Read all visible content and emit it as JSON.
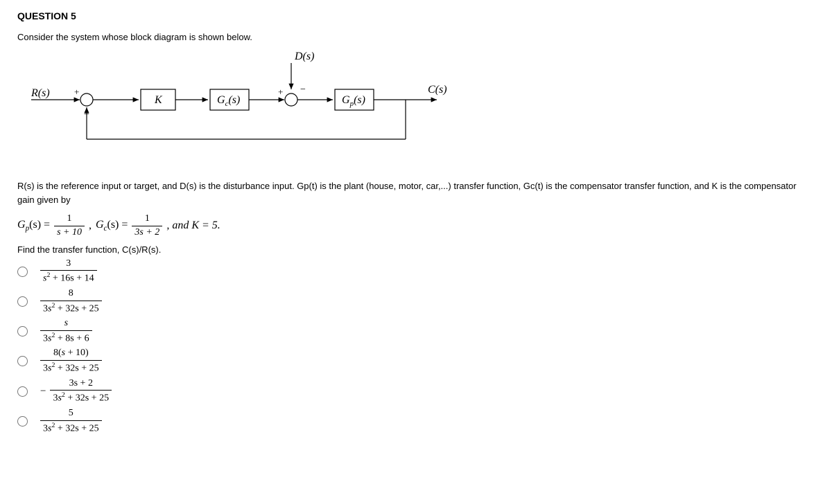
{
  "question": {
    "title": "QUESTION 5",
    "prompt": "Consider the system whose block diagram is shown below.",
    "description": "R(s) is the reference input or target, and D(s) is the disturbance input.  Gp(t) is the plant (house, motor, car,...) transfer function, Gc(t) is the compensator transfer function, and K is the compensator gain given by",
    "find": "Find the transfer function, C(s)/R(s)."
  },
  "diagram": {
    "labels": {
      "R": "R(s)",
      "D": "D(s)",
      "C": "C(s)",
      "K": "K",
      "Gc": "G_c(s)",
      "Gp": "G_p(s)",
      "plus": "+",
      "minus": "−"
    },
    "colors": {
      "stroke": "#000000",
      "fill": "#ffffff",
      "font": "serif"
    },
    "line_width": 1.2
  },
  "given": {
    "Gp_lhs": "G",
    "Gp_sub": "p",
    "Gc_lhs": "G",
    "Gc_sub": "c",
    "s_label": "(s) =",
    "Gp_num": "1",
    "Gp_den": "s + 10",
    "Gc_num": "1",
    "Gc_den": "3s + 2",
    "and_K": ", and K = 5.",
    "comma": ","
  },
  "options": [
    {
      "num": "3",
      "den": "s² + 16s + 14",
      "neg": false
    },
    {
      "num": "8",
      "den": "3s² + 32s + 25",
      "neg": false
    },
    {
      "num": "s",
      "den": "3s² + 8s + 6",
      "neg": false
    },
    {
      "num": "8(s + 10)",
      "den": "3s² + 32s + 25",
      "neg": false
    },
    {
      "num": "3s + 2",
      "den": "3s² + 32s + 25",
      "neg": true
    },
    {
      "num": "5",
      "den": "3s² + 32s + 25",
      "neg": false
    }
  ]
}
